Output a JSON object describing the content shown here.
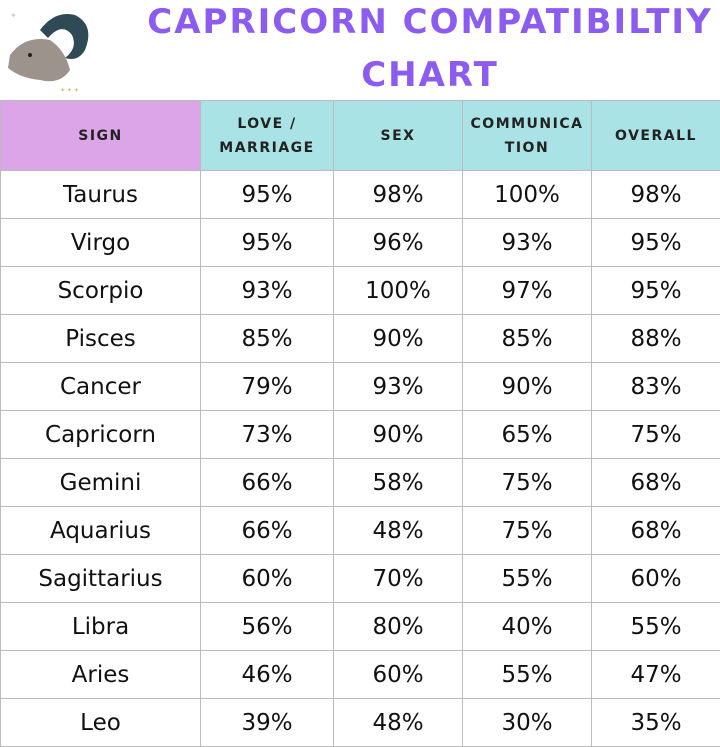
{
  "title_line1": "CAPRICORN COMPATIBILTIY",
  "title_line2": "CHART",
  "colors": {
    "title": "#8c5cf0",
    "sign_header": "#dba5e8",
    "metric_header": "#a9e3e6"
  },
  "logo_icon": "capricorn-goat-icon",
  "chart_data": {
    "type": "table",
    "columns": [
      "SIGN",
      "LOVE / MARRIAGE",
      "SEX",
      "COMMUNICA TION",
      "OVERALL"
    ],
    "rows": [
      [
        "Taurus",
        "95%",
        "98%",
        "100%",
        "98%"
      ],
      [
        "Virgo",
        "95%",
        "96%",
        "93%",
        "95%"
      ],
      [
        "Scorpio",
        "93%",
        "100%",
        "97%",
        "95%"
      ],
      [
        "Pisces",
        "85%",
        "90%",
        "85%",
        "88%"
      ],
      [
        "Cancer",
        "79%",
        "93%",
        "90%",
        "83%"
      ],
      [
        "Capricorn",
        "73%",
        "90%",
        "65%",
        "75%"
      ],
      [
        "Gemini",
        "66%",
        "58%",
        "75%",
        "68%"
      ],
      [
        "Aquarius",
        "66%",
        "48%",
        "75%",
        "68%"
      ],
      [
        "Sagittarius",
        "60%",
        "70%",
        "55%",
        "60%"
      ],
      [
        "Libra",
        "56%",
        "80%",
        "40%",
        "55%"
      ],
      [
        "Aries",
        "46%",
        "60%",
        "55%",
        "47%"
      ],
      [
        "Leo",
        "39%",
        "48%",
        "30%",
        "35%"
      ]
    ]
  }
}
